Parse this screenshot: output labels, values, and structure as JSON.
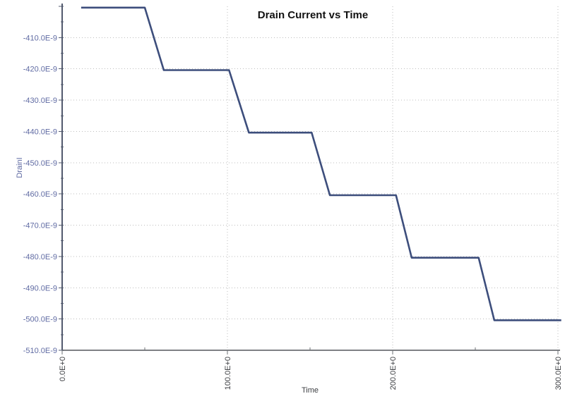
{
  "window": {
    "background": "#ffffff"
  },
  "chart_data": {
    "type": "line",
    "title": "Drain Current vs Time",
    "xlabel": "Time",
    "ylabel": "DrainI",
    "x_unit": "E+0 (seconds)",
    "y_unit": "E-9 (amps, values below stored in nanoamp units)",
    "xlim": [
      0,
      300
    ],
    "ylim_e9": [
      -510,
      -400
    ],
    "grid": {
      "style": "dotted",
      "horizontal_at": [
        -410,
        -420,
        -430,
        -440,
        -450,
        -460,
        -470,
        -480,
        -490,
        -500
      ],
      "vertical_at": [
        100,
        200,
        300
      ]
    },
    "x_major_ticks": [
      {
        "value": 0,
        "label": "0.0E+0"
      },
      {
        "value": 100,
        "label": "100.0E+0"
      },
      {
        "value": 200,
        "label": "200.0E+0"
      },
      {
        "value": 300,
        "label": "300.0E+0"
      }
    ],
    "x_minor_ticks": [
      50,
      150,
      250
    ],
    "y_major_ticks": [
      {
        "value": -400,
        "label": ""
      },
      {
        "value": -410,
        "label": "-410.0E-9"
      },
      {
        "value": -420,
        "label": "-420.0E-9"
      },
      {
        "value": -430,
        "label": "-430.0E-9"
      },
      {
        "value": -440,
        "label": "-440.0E-9"
      },
      {
        "value": -450,
        "label": "-450.0E-9"
      },
      {
        "value": -460,
        "label": "-460.0E-9"
      },
      {
        "value": -470,
        "label": "-470.0E-9"
      },
      {
        "value": -480,
        "label": "-480.0E-9"
      },
      {
        "value": -490,
        "label": "-490.0E-9"
      },
      {
        "value": -500,
        "label": "-500.0E-9"
      },
      {
        "value": -510,
        "label": "-510.0E-9"
      }
    ],
    "y_minor_ticks": [
      -405,
      -415,
      -425,
      -435,
      -445,
      -455,
      -465,
      -475,
      -485,
      -495,
      -505
    ],
    "series": [
      {
        "name": "Drain Current",
        "color": "#3d4e7c",
        "shape": "descending staircase, -20 nA per step",
        "points": [
          [
            11.5,
            -400.4
          ],
          [
            50,
            -400.4
          ],
          [
            61.5,
            -420.4
          ],
          [
            101,
            -420.4
          ],
          [
            113,
            -440.4
          ],
          [
            151,
            -440.4
          ],
          [
            162,
            -460.4
          ],
          [
            202,
            -460.4
          ],
          [
            211.5,
            -480.4
          ],
          [
            252,
            -480.4
          ],
          [
            261.5,
            -500.4
          ],
          [
            302,
            -500.4
          ]
        ]
      }
    ],
    "colors": {
      "title": "#111111",
      "y_tick_labels": "#606ba3",
      "x_tick_labels": "#3e4044",
      "y_axis": "#525a6e",
      "x_axis": "#7e8084",
      "gridlines": "#bdbdbd",
      "line": "#3d4e7c",
      "background": "#ffffff"
    }
  }
}
